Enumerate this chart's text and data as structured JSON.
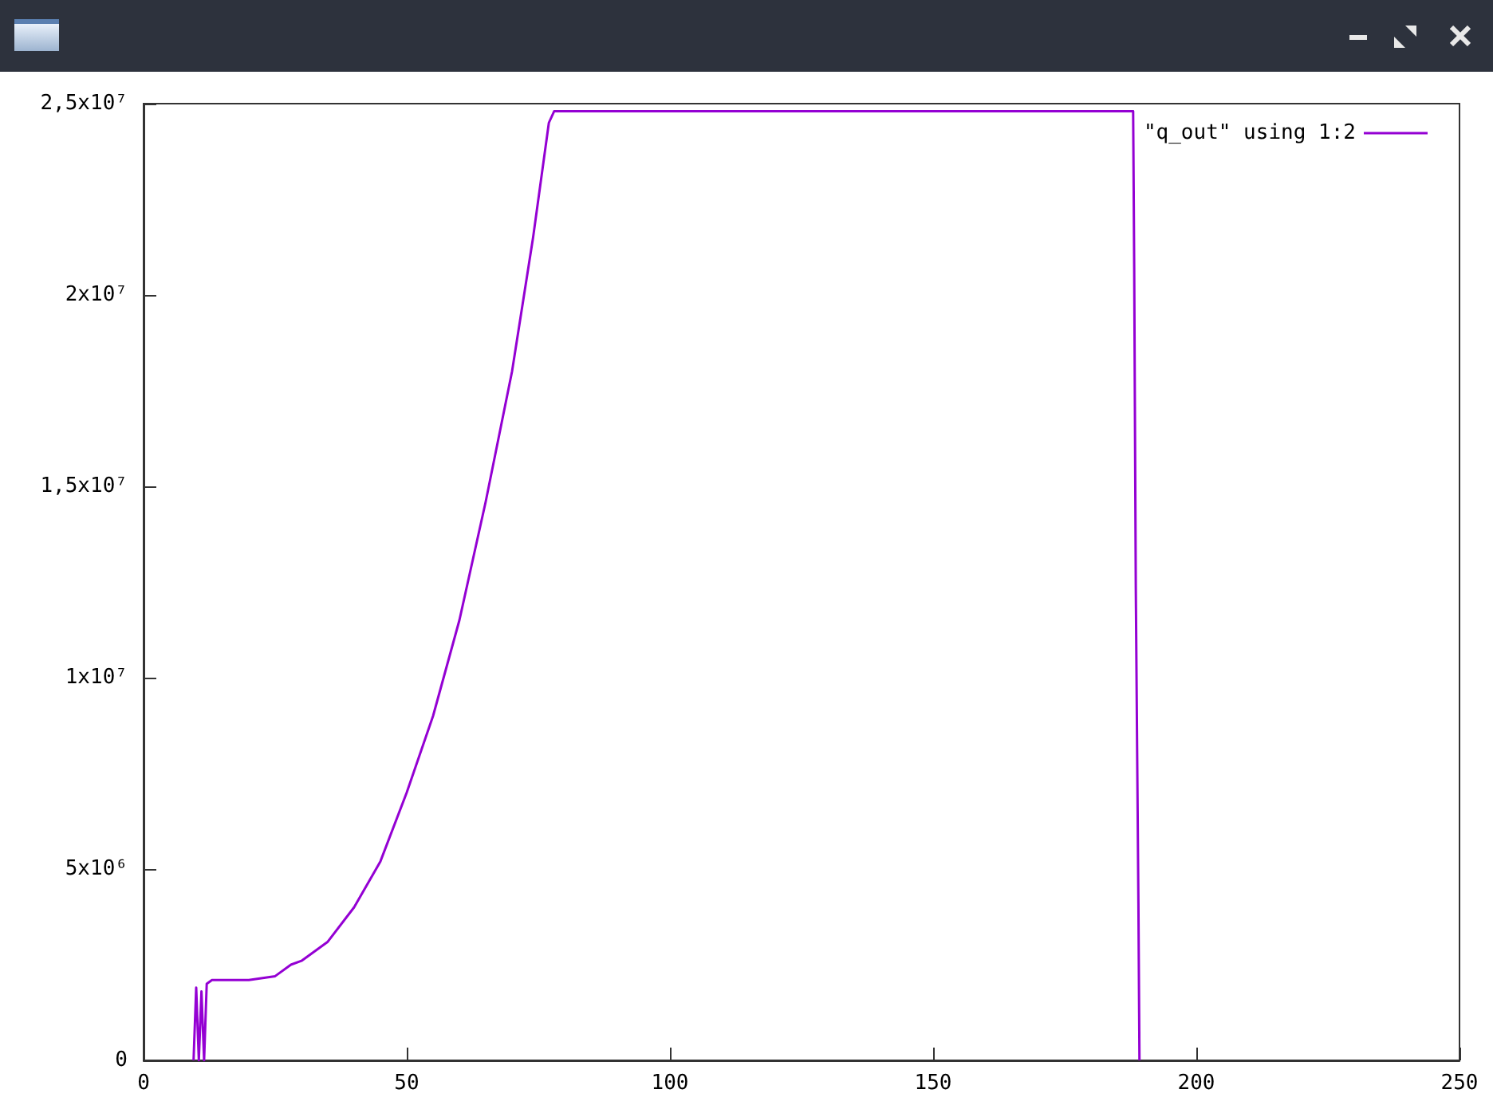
{
  "chart_data": {
    "type": "line",
    "x": [
      9.5,
      10,
      10.5,
      11,
      11.5,
      12,
      13,
      20,
      25,
      28,
      30,
      35,
      40,
      45,
      50,
      55,
      60,
      65,
      70,
      74,
      77,
      78,
      100,
      130,
      160,
      185,
      188,
      188.2,
      188.5,
      189,
      189.2
    ],
    "series": [
      {
        "name": "\"q_out\" using 1:2",
        "color": "#9400d3",
        "values": [
          0,
          1900000,
          0,
          1800000,
          0,
          2000000,
          2100000,
          2100000,
          2200000,
          2500000,
          2600000,
          3100000,
          4000000,
          5200000,
          7000000,
          9000000,
          11500000,
          14600000,
          18000000,
          21500000,
          24500000,
          24800000,
          24800000,
          24800000,
          24800000,
          24800000,
          24800000,
          20700000,
          12400000,
          4100000,
          0
        ]
      }
    ],
    "xlim": [
      0,
      250
    ],
    "xticks": [
      0,
      50,
      100,
      150,
      200,
      250
    ],
    "ylim": [
      0,
      25000000
    ],
    "yticks": [
      0,
      {
        "value": 5000000,
        "label": "5x10⁶"
      },
      {
        "value": 10000000,
        "label": "1x10⁷"
      },
      {
        "value": 15000000,
        "label": "1,5x10⁷"
      },
      {
        "value": 20000000,
        "label": "2x10⁷"
      },
      {
        "value": 25000000,
        "label": "2,5x10⁷"
      }
    ],
    "grid": false,
    "legend": "top right"
  }
}
